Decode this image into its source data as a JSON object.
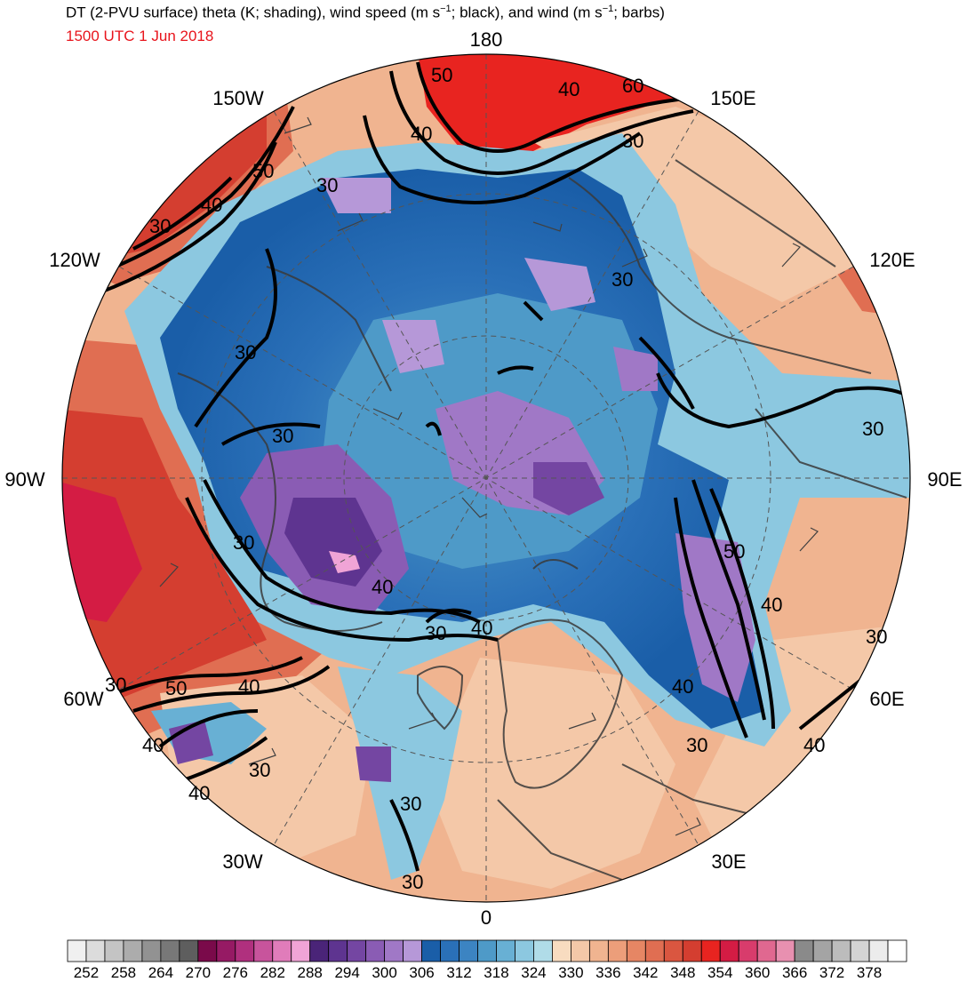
{
  "title_parts": {
    "a": "DT (2-PVU surface) theta (K; shading), wind speed (m s",
    "b": "; black), and wind (m s",
    "c": "; barbs)",
    "sup": "−1"
  },
  "subtitle": "1500 UTC 1 Jun 2018",
  "longitude_labels": {
    "n": "180",
    "nw1": "150W",
    "ne1": "150E",
    "nw2": "120W",
    "ne2": "120E",
    "w": "90W",
    "e": "90E",
    "sw2": "60W",
    "se2": "60E",
    "sw1": "30W",
    "se1": "30E",
    "s": "0"
  },
  "contour_labels": {
    "c1": "50",
    "c2": "40",
    "c3": "60",
    "c4": "40",
    "c5": "30",
    "c6": "30",
    "c7": "50",
    "c8": "40",
    "c9": "30",
    "c10": "30",
    "c11": "30",
    "c12": "30",
    "c13": "30",
    "c14": "40",
    "c15": "30",
    "c16": "40",
    "c17": "50",
    "c18": "40",
    "c19": "30",
    "c20": "30",
    "c21": "50",
    "c22": "40",
    "c23": "40",
    "c24": "30",
    "c25": "40",
    "c26": "30",
    "c27": "30",
    "c28": "50",
    "c29": "40",
    "c30": "40",
    "c31": "30",
    "c32": "30",
    "c33": "40",
    "c34": "40"
  },
  "colorbar": {
    "colors": [
      "#f0f0f0",
      "#dcdcdc",
      "#c4c4c4",
      "#acacac",
      "#929292",
      "#787878",
      "#5e5e5e",
      "#7a0a4a",
      "#961a64",
      "#b0307e",
      "#c8549c",
      "#e07cba",
      "#f0a4d6",
      "#4a2478",
      "#5e3490",
      "#7446a2",
      "#8a5cb4",
      "#a078c6",
      "#b698d8",
      "#1a5ea8",
      "#2a70b8",
      "#3c84c2",
      "#4e9ac8",
      "#68b0d4",
      "#8cc8e0",
      "#b0dce8",
      "#f8dcc0",
      "#f4c8a8",
      "#f0b490",
      "#ec9e7a",
      "#e68664",
      "#e06e52",
      "#da5640",
      "#d43e30",
      "#e82420",
      "#d41c44",
      "#d83c6c",
      "#e06890",
      "#e890b0",
      "#8a8a8a",
      "#a4a4a4",
      "#bcbcbc",
      "#d4d4d4",
      "#ececec",
      "#ffffff"
    ],
    "ticks": [
      "252",
      "258",
      "264",
      "270",
      "276",
      "282",
      "288",
      "294",
      "300",
      "306",
      "312",
      "318",
      "324",
      "330",
      "336",
      "342",
      "348",
      "354",
      "360",
      "366",
      "372",
      "378"
    ]
  }
}
